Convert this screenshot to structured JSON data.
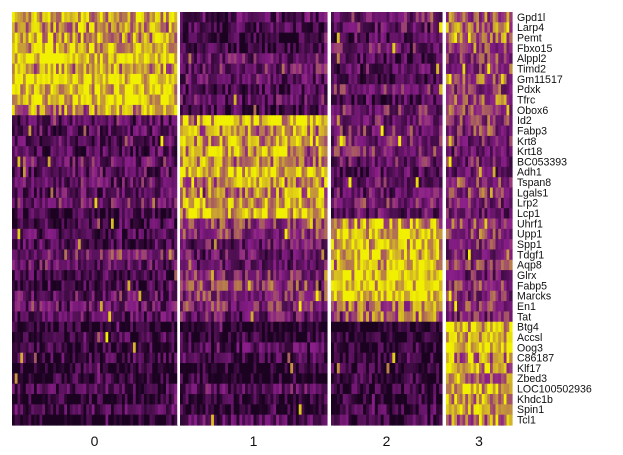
{
  "chart_data": {
    "type": "heatmap",
    "title": "",
    "xlabel": "",
    "ylabel": "",
    "legend": "none",
    "grid": false,
    "color_scale": {
      "low": "#1a0220",
      "mid": "#8a1e8a",
      "high": "#f0f000"
    },
    "clusters": [
      {
        "label": "0",
        "cell_count": 60
      },
      {
        "label": "1",
        "cell_count": 52
      },
      {
        "label": "2",
        "cell_count": 38
      },
      {
        "label": "3",
        "cell_count": 24
      }
    ],
    "cluster_separator_color": "#ffffff",
    "genes": [
      "Gpd1l",
      "Larp4",
      "Pemt",
      "Fbxo15",
      "Alppl2",
      "Timd2",
      "Gm11517",
      "Pdxk",
      "Tfrc",
      "Obox6",
      "Id2",
      "Fabp3",
      "Krt8",
      "Krt18",
      "BC053393",
      "Adh1",
      "Tspan8",
      "Lgals1",
      "Lrp2",
      "Lcp1",
      "Uhrf1",
      "Upp1",
      "Spp1",
      "Tdgf1",
      "Aqp8",
      "Glrx",
      "Fabp5",
      "Marcks",
      "En1",
      "Tat",
      "Btg4",
      "Accsl",
      "Oog3",
      "C86187",
      "Klf17",
      "Zbed3",
      "LOC100502936",
      "Khdc1b",
      "Spin1",
      "Tcl1"
    ],
    "marker_cluster_by_gene": [
      0,
      0,
      0,
      0,
      0,
      0,
      0,
      0,
      0,
      0,
      1,
      1,
      1,
      1,
      1,
      1,
      1,
      1,
      1,
      1,
      2,
      2,
      2,
      2,
      2,
      2,
      2,
      2,
      2,
      2,
      3,
      3,
      3,
      3,
      3,
      3,
      3,
      3,
      3,
      3
    ],
    "mean_scaled_expression": {
      "rows": "marker gene group (genes 1-10, 11-20, 21-30, 31-40)",
      "columns": [
        "0",
        "1",
        "2",
        "3"
      ],
      "values": [
        [
          0.85,
          0.25,
          0.3,
          0.6
        ],
        [
          0.25,
          0.8,
          0.3,
          0.45
        ],
        [
          0.3,
          0.4,
          0.8,
          0.45
        ],
        [
          0.12,
          0.15,
          0.12,
          0.85
        ]
      ]
    },
    "value_range": [
      0,
      1
    ]
  }
}
